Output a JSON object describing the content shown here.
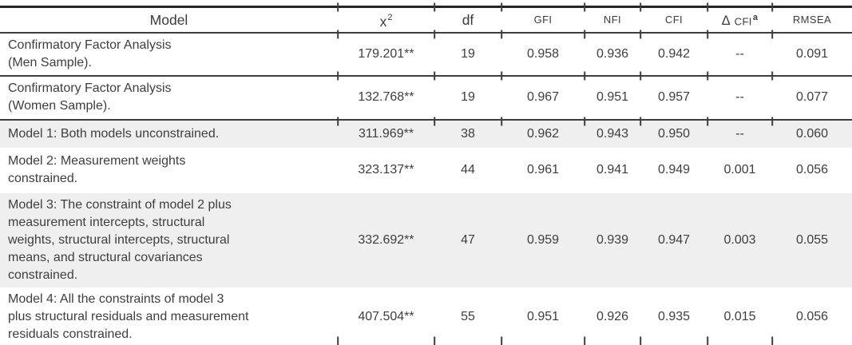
{
  "page": {
    "background": "#ffffff"
  },
  "colors": {
    "text": "#3e3e3e",
    "header_text": "#3b3b3b",
    "row_shade": "#efefef",
    "thin_rule": "#3d3d3d",
    "thick_border": "#242424"
  },
  "table": {
    "columns": [
      {
        "key": "model",
        "label": "Model"
      },
      {
        "key": "chisq",
        "label": "x",
        "sup": "2"
      },
      {
        "key": "df",
        "label": "df"
      },
      {
        "key": "gfi",
        "label": "GFI"
      },
      {
        "key": "nfi",
        "label": "NFI"
      },
      {
        "key": "cfi",
        "label": "CFI"
      },
      {
        "key": "dcfi",
        "prefix": "Δ",
        "label": "CFI",
        "sup": "a"
      },
      {
        "key": "rmsea",
        "label": "RMSEA"
      }
    ],
    "rows": [
      {
        "model": "Confirmatory Factor Analysis\n(Men Sample).",
        "chisq": "179.201**",
        "df": "19",
        "gfi": "0.958",
        "nfi": "0.936",
        "cfi": "0.942",
        "dcfi": "--",
        "rmsea": "0.091",
        "shaded": false,
        "ruled": true
      },
      {
        "model": "Confirmatory Factor Analysis\n(Women Sample).",
        "chisq": "132.768**",
        "df": "19",
        "gfi": "0.967",
        "nfi": "0.951",
        "cfi": "0.957",
        "dcfi": "--",
        "rmsea": "0.077",
        "shaded": false,
        "ruled": true
      },
      {
        "model": "Model 1: Both models unconstrained.",
        "chisq": "311.969**",
        "df": "38",
        "gfi": "0.962",
        "nfi": "0.943",
        "cfi": "0.950",
        "dcfi": "--",
        "rmsea": "0.060",
        "shaded": true,
        "ruled": false
      },
      {
        "model": "Model 2: Measurement weights\nconstrained.",
        "chisq": "323.137**",
        "df": "44",
        "gfi": "0.961",
        "nfi": "0.941",
        "cfi": "0.949",
        "dcfi": "0.001",
        "rmsea": "0.056",
        "shaded": false,
        "ruled": false
      },
      {
        "model": "Model 3: The constraint of model 2 plus\nmeasurement intercepts, structural\nweights, structural intercepts, structural\nmeans, and structural covariances\nconstrained.",
        "chisq": "332.692**",
        "df": "47",
        "gfi": "0.959",
        "nfi": "0.939",
        "cfi": "0.947",
        "dcfi": "0.003",
        "rmsea": "0.055",
        "shaded": true,
        "ruled": false
      },
      {
        "model": "Model 4: All the constraints of model 3\nplus structural residuals and measurement\nresiduals constrained.",
        "chisq": "407.504**",
        "df": "55",
        "gfi": "0.951",
        "nfi": "0.926",
        "cfi": "0.935",
        "dcfi": "0.015",
        "rmsea": "0.056",
        "shaded": false,
        "ruled": false
      }
    ]
  }
}
